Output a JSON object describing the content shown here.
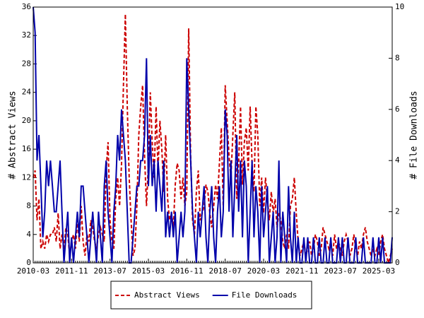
{
  "chart_data": {
    "type": "line",
    "y_label": "# Abstract Views",
    "y2_label": "# File Downloads",
    "categories": [
      "2010-03",
      null,
      null,
      null,
      null,
      null,
      null,
      null,
      null,
      null,
      null,
      null,
      null,
      null,
      null,
      null,
      null,
      null,
      null,
      null,
      "2011-11",
      null,
      null,
      null,
      null,
      null,
      null,
      null,
      null,
      null,
      null,
      null,
      null,
      null,
      null,
      null,
      null,
      null,
      null,
      null,
      "2013-07",
      null,
      null,
      null,
      null,
      null,
      null,
      null,
      null,
      null,
      null,
      null,
      null,
      null,
      null,
      null,
      null,
      null,
      null,
      null,
      "2015-03",
      null,
      null,
      null,
      null,
      null,
      null,
      null,
      null,
      null,
      null,
      null,
      null,
      null,
      null,
      null,
      null,
      null,
      null,
      null,
      "2016-11",
      null,
      null,
      null,
      null,
      null,
      null,
      null,
      null,
      null,
      null,
      null,
      null,
      null,
      null,
      null,
      null,
      null,
      null,
      null,
      "2018-07",
      null,
      null,
      null,
      null,
      null,
      null,
      null,
      null,
      null,
      null,
      null,
      null,
      null,
      null,
      null,
      null,
      null,
      null,
      null,
      "2020-03",
      null,
      null,
      null,
      null,
      null,
      null,
      null,
      null,
      null,
      null,
      null,
      null,
      null,
      null,
      null,
      null,
      null,
      null,
      null,
      "2021-11",
      null,
      null,
      null,
      null,
      null,
      null,
      null,
      null,
      null,
      null,
      null,
      null,
      null,
      null,
      null,
      null,
      null,
      null,
      null,
      "2023-07",
      null,
      null,
      null,
      null,
      null,
      null,
      null,
      null,
      null,
      null,
      null,
      null,
      null,
      null,
      null,
      null,
      null,
      null,
      null,
      "2025-03",
      null,
      null,
      null,
      null,
      null,
      null,
      null
    ],
    "series": [
      {
        "name": "Abstract Views",
        "color": "#cc0000",
        "linestyle": "dashed",
        "axis": "y",
        "values": [
          12,
          13,
          6,
          9,
          2,
          3,
          2,
          4,
          3,
          4,
          4,
          5,
          3,
          7,
          2,
          4,
          2,
          5,
          4,
          1,
          3,
          4,
          2,
          6,
          3,
          8,
          3,
          1,
          4,
          3,
          6,
          5,
          3,
          2,
          4,
          5,
          4,
          3,
          13,
          17,
          6,
          3,
          2,
          9,
          12,
          8,
          14,
          25,
          35,
          22,
          12,
          6,
          1,
          2,
          8,
          18,
          22,
          25,
          15,
          8,
          14,
          24,
          17,
          12,
          22,
          13,
          20,
          16,
          10,
          18,
          9,
          6,
          7,
          5,
          11,
          14,
          13,
          9,
          12,
          8,
          10,
          33,
          15,
          6,
          4,
          10,
          13,
          6,
          7,
          8,
          11,
          10,
          7,
          5,
          8,
          11,
          9,
          14,
          19,
          8,
          25,
          20,
          15,
          12,
          18,
          24,
          9,
          14,
          22,
          11,
          17,
          19,
          13,
          22,
          14,
          10,
          22,
          18,
          8,
          12,
          7,
          12,
          9,
          6,
          10,
          7,
          9,
          5,
          7,
          6,
          3,
          2,
          4,
          2,
          8,
          9,
          12,
          7,
          3,
          1,
          2,
          3,
          1,
          2,
          3,
          1,
          2,
          4,
          3,
          1,
          2,
          5,
          4,
          3,
          2,
          3,
          1,
          4,
          2,
          3,
          2,
          1,
          3,
          4,
          3,
          1,
          2,
          4,
          2,
          1,
          3,
          2,
          4,
          5,
          3,
          2,
          1,
          2,
          1,
          2,
          1,
          3,
          4,
          2,
          1,
          0,
          1,
          2
        ]
      },
      {
        "name": "File Downloads",
        "color": "#0000aa",
        "linestyle": "solid",
        "axis": "y2",
        "values": [
          10,
          9,
          4,
          5,
          3,
          1,
          2,
          4,
          3,
          4,
          3,
          2,
          2,
          3,
          4,
          2,
          0,
          1,
          2,
          0,
          1,
          0,
          1,
          2,
          1,
          3,
          3,
          2,
          1,
          0,
          1,
          2,
          1,
          0,
          2,
          1,
          0,
          3,
          4,
          2,
          1,
          0,
          2,
          3,
          5,
          4,
          6,
          5,
          4,
          2,
          0,
          0,
          1,
          2,
          3,
          3,
          4,
          4,
          5,
          8,
          3,
          5,
          3,
          4,
          2,
          4,
          3,
          2,
          4,
          1,
          2,
          1,
          2,
          1,
          2,
          0,
          1,
          2,
          1,
          2,
          8,
          6,
          4,
          2,
          1,
          0,
          2,
          1,
          2,
          3,
          1,
          0,
          2,
          3,
          1,
          0,
          2,
          3,
          1,
          2,
          6,
          5,
          2,
          4,
          1,
          3,
          5,
          2,
          4,
          1,
          4,
          3,
          0,
          2,
          4,
          1,
          3,
          2,
          0,
          3,
          1,
          2,
          3,
          0,
          1,
          2,
          0,
          1,
          4,
          0,
          2,
          1,
          0,
          3,
          1,
          0,
          2,
          0,
          1,
          0,
          0,
          1,
          0,
          1,
          0,
          0,
          1,
          0,
          0,
          1,
          0,
          0,
          1,
          0,
          0,
          1,
          0,
          0,
          0,
          1,
          0,
          1,
          0,
          0,
          1,
          0,
          0,
          0,
          1,
          0,
          0,
          0,
          1,
          0,
          0,
          0,
          0,
          1,
          0,
          0,
          1,
          0,
          1,
          0,
          0,
          0,
          0,
          1
        ]
      }
    ],
    "ylim": [
      0,
      36
    ],
    "yticks": [
      0,
      4,
      8,
      12,
      16,
      20,
      24,
      28,
      32,
      36
    ],
    "y2lim": [
      0,
      10
    ],
    "y2ticks": [
      0,
      2,
      4,
      6,
      8,
      10
    ],
    "legend": "bottom"
  }
}
